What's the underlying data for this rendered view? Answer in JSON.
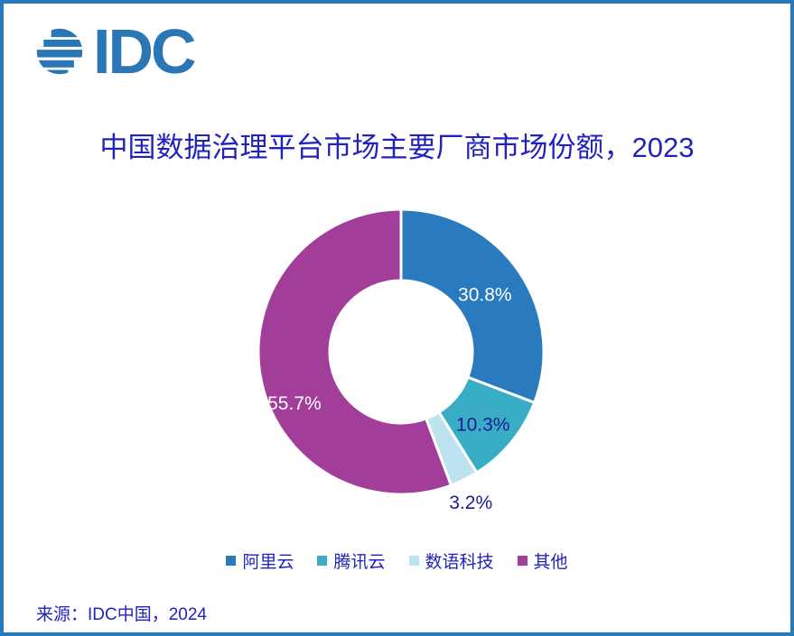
{
  "logo": {
    "text": "IDC",
    "icon": "globe-stripes-icon",
    "color": "#2B77B5"
  },
  "chart_data": {
    "type": "pie",
    "subtype": "donut",
    "title": "中国数据治理平台市场主要厂商市场份额，2023",
    "categories": [
      "阿里云",
      "腾讯云",
      "数语科技",
      "其他"
    ],
    "values": [
      30.8,
      10.3,
      3.2,
      55.7
    ],
    "slices": [
      {
        "name": "阿里云",
        "value": 30.8,
        "label": "30.8%",
        "color": "#2A7ABF",
        "label_color": "#FFFFFF",
        "label_placement": "inside"
      },
      {
        "name": "腾讯云",
        "value": 10.3,
        "label": "10.3%",
        "color": "#39ACC6",
        "label_color": "#1C1C94",
        "label_placement": "inside"
      },
      {
        "name": "数语科技",
        "value": 3.2,
        "label": "3.2%",
        "color": "#BEE3F0",
        "label_color": "#1C1C94",
        "label_placement": "outside"
      },
      {
        "name": "其他",
        "value": 55.7,
        "label": "55.7%",
        "color": "#A23D99",
        "label_color": "#FFFFFF",
        "label_placement": "inside"
      }
    ],
    "start_angle_deg": 0,
    "direction": "clockwise",
    "donut_hole_ratio": 0.5,
    "separator_color": "#FFFFFF",
    "legend_position": "bottom",
    "grid": false
  },
  "source_note": "来源：IDC中国，2024",
  "colors": {
    "background": "#FFFFFF",
    "border": "#2B79BD",
    "title_text": "#2222BC",
    "label_navy": "#1C1C94",
    "logo_blue": "#2B77B5"
  }
}
